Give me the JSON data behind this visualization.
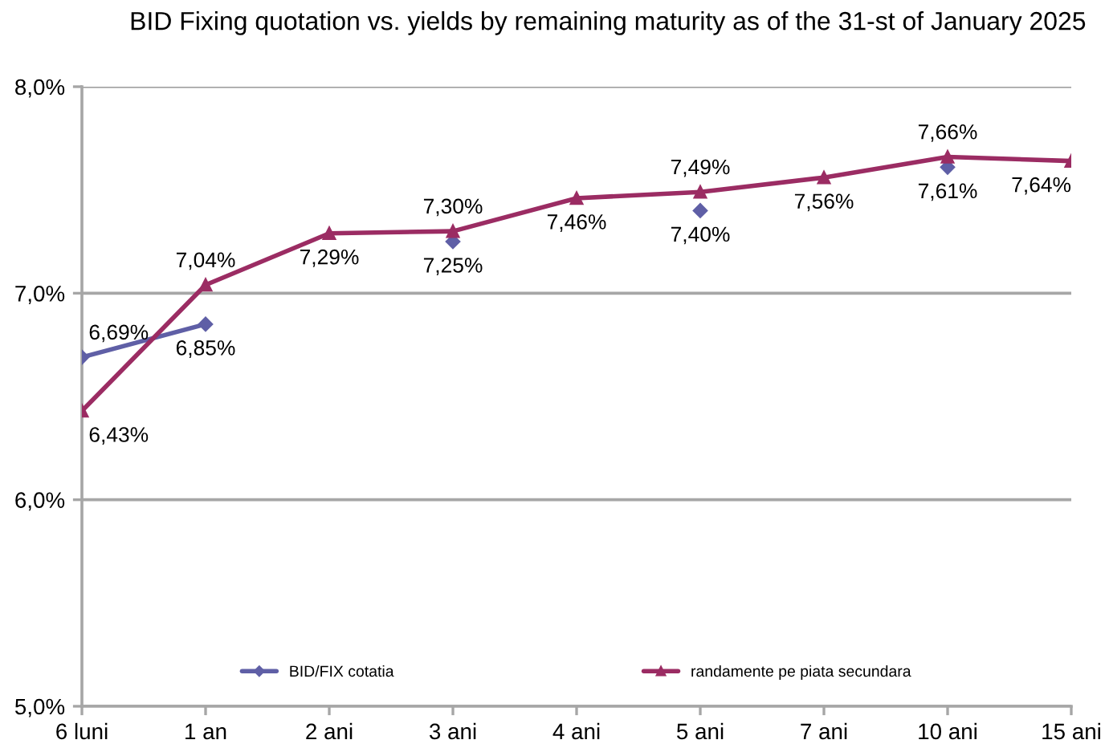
{
  "chart_data": {
    "type": "line",
    "title": "BID Fixing quotation vs. yields by remaining maturity as of the 31-st of January 2025",
    "categories": [
      "6 luni",
      "1 an",
      "2 ani",
      "3 ani",
      "4 ani",
      "5 ani",
      "7 ani",
      "10 ani",
      "15 ani"
    ],
    "series": [
      {
        "name": "BID/FIX cotatia",
        "color": "#5f5fa6",
        "marker": "diamond",
        "values": [
          6.69,
          6.85,
          null,
          7.25,
          null,
          7.4,
          null,
          7.61,
          null
        ],
        "value_labels": [
          "6,69%",
          "6,85%",
          null,
          "7,25%",
          null,
          "7,40%",
          null,
          "7,61%",
          null
        ]
      },
      {
        "name": "randamente pe piata secundara",
        "color": "#9b2c63",
        "marker": "triangle",
        "values": [
          6.43,
          7.04,
          7.29,
          7.3,
          7.46,
          7.49,
          7.56,
          7.66,
          7.64
        ],
        "value_labels": [
          "6,43%",
          "7,04%",
          "7,29%",
          "7,30%",
          "7,46%",
          "7,49%",
          "7,56%",
          "7,66%",
          "7,64%"
        ]
      }
    ],
    "ylim": [
      5,
      8
    ],
    "yticks": [
      {
        "value": 5,
        "label": "5,0%"
      },
      {
        "value": 6,
        "label": "6,0%"
      },
      {
        "value": 7,
        "label": "7,0%"
      },
      {
        "value": 8,
        "label": "8,0%"
      }
    ],
    "grid": "y",
    "legend": "bottom",
    "line_style": "solid"
  }
}
